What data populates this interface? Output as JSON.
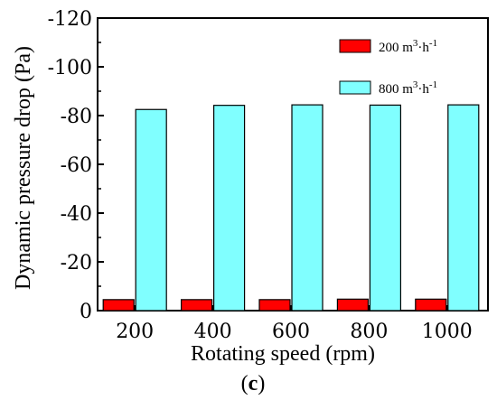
{
  "chart_data": {
    "type": "bar",
    "title": "",
    "xlabel": "Rotating speed (rpm)",
    "ylabel": "Dynamic pressure drop (Pa)",
    "panel_label": "c",
    "categories": [
      "200",
      "400",
      "600",
      "800",
      "1000"
    ],
    "ylim": [
      0,
      -120
    ],
    "yticks": [
      0,
      -20,
      -40,
      -60,
      -80,
      -100,
      -120
    ],
    "ytick_labels": [
      "0",
      "-20",
      "-40",
      "-60",
      "-80",
      "-100",
      "-120"
    ],
    "grid": false,
    "legend_position": "top-right",
    "series": [
      {
        "name": "200 m3·h-1",
        "name_parts": {
          "pre": "200 m",
          "sup1": "3",
          "mid": "·h",
          "sup2": "-1"
        },
        "color": "#ff0000",
        "values": [
          -4.5,
          -4.5,
          -4.5,
          -4.7,
          -4.7
        ]
      },
      {
        "name": "800 m3·h-1",
        "name_parts": {
          "pre": "800 m",
          "sup1": "3",
          "mid": "·h",
          "sup2": "-1"
        },
        "color": "#80ffff",
        "values": [
          -82.5,
          -84.2,
          -84.4,
          -84.3,
          -84.4
        ]
      }
    ]
  }
}
